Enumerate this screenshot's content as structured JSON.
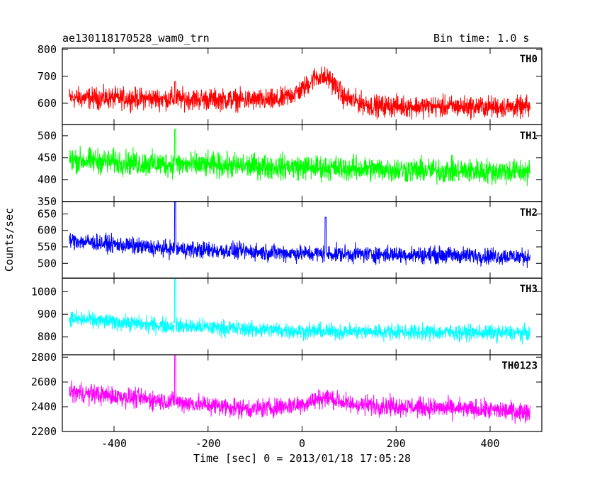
{
  "header": {
    "title": "ae130118170528_wam0_trn",
    "bin_time": "Bin time: 1.0 s"
  },
  "chart_data": {
    "type": "line",
    "xlabel": "Time [sec] 0 = 2013/01/18 17:05:28",
    "ylabel": "Counts/sec",
    "xlim": [
      -510,
      510
    ],
    "x_ticks": [
      -400,
      -200,
      0,
      200,
      400
    ],
    "x_range": [
      -495,
      485
    ],
    "panels": [
      {
        "name": "TH0",
        "color": "#ff0000",
        "ylim": [
          520,
          805
        ],
        "y_ticks": [
          600,
          700,
          800
        ],
        "baseline": [
          [
            -495,
            620
          ],
          [
            -200,
            615
          ],
          [
            -50,
            610
          ],
          [
            0,
            650
          ],
          [
            30,
            700
          ],
          [
            60,
            690
          ],
          [
            90,
            620
          ],
          [
            150,
            590
          ],
          [
            485,
            585
          ]
        ],
        "noise": 28,
        "spikes": [
          [
            -270,
            680
          ]
        ]
      },
      {
        "name": "TH1",
        "color": "#00ff00",
        "ylim": [
          350,
          525
        ],
        "y_ticks": [
          350,
          400,
          450,
          500
        ],
        "baseline": [
          [
            -495,
            445
          ],
          [
            -300,
            435
          ],
          [
            0,
            428
          ],
          [
            300,
            420
          ],
          [
            485,
            418
          ]
        ],
        "noise": 20,
        "spikes": [
          [
            -270,
            515
          ]
        ]
      },
      {
        "name": "TH2",
        "color": "#0000ff",
        "ylim": [
          455,
          688
        ],
        "y_ticks": [
          500,
          550,
          600,
          650
        ],
        "baseline": [
          [
            -495,
            570
          ],
          [
            -300,
            545
          ],
          [
            0,
            530
          ],
          [
            300,
            525
          ],
          [
            485,
            520
          ]
        ],
        "noise": 18,
        "spikes": [
          [
            -270,
            688
          ],
          [
            50,
            640
          ]
        ]
      },
      {
        "name": "TH3",
        "color": "#00ffff",
        "ylim": [
          720,
          1060
        ],
        "y_ticks": [
          800,
          900,
          1000
        ],
        "baseline": [
          [
            -495,
            880
          ],
          [
            -300,
            850
          ],
          [
            0,
            825
          ],
          [
            300,
            820
          ],
          [
            485,
            815
          ]
        ],
        "noise": 25,
        "spikes": [
          [
            -270,
            1060
          ]
        ]
      },
      {
        "name": "TH0123",
        "color": "#ff00ff",
        "ylim": [
          2200,
          2820
        ],
        "y_ticks": [
          2200,
          2400,
          2600,
          2800
        ],
        "baseline": [
          [
            -495,
            2520
          ],
          [
            -300,
            2450
          ],
          [
            -100,
            2380
          ],
          [
            0,
            2420
          ],
          [
            50,
            2480
          ],
          [
            100,
            2420
          ],
          [
            485,
            2360
          ]
        ],
        "noise": 55,
        "spikes": [
          [
            -270,
            2820
          ]
        ]
      }
    ]
  }
}
